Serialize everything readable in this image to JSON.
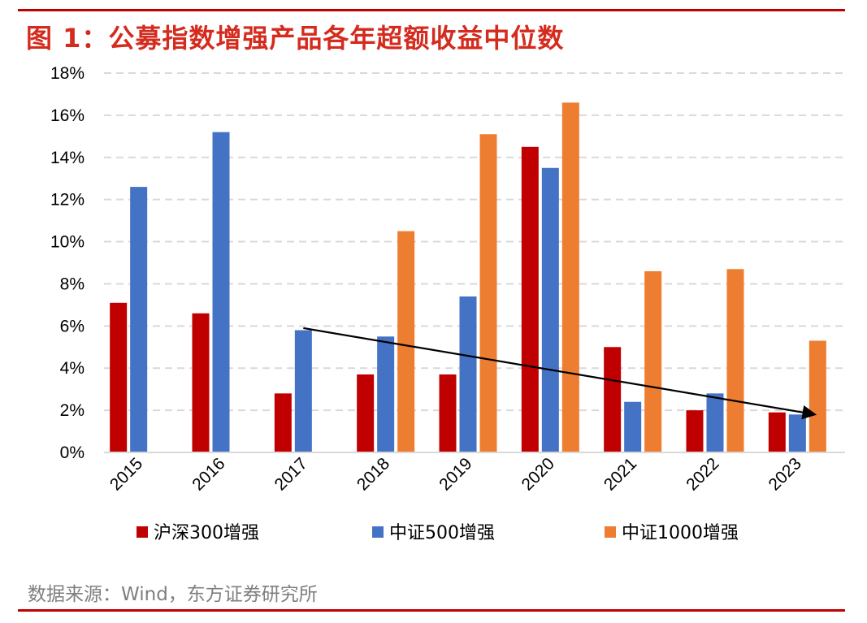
{
  "figure": {
    "title": "图 1：公募指数增强产品各年超额收益中位数",
    "source": "数据来源：Wind，东方证券研究所"
  },
  "colors": {
    "accent": "#c00000",
    "title": "#d42b1e",
    "series": [
      "#c00000",
      "#4472c4",
      "#ed7d31"
    ],
    "grid": "#d9d9d9",
    "source": "#7f7f7f"
  },
  "chart_data": {
    "type": "bar",
    "title": "公募指数增强产品各年超额收益中位数",
    "xlabel": "",
    "ylabel": "",
    "categories": [
      "2015",
      "2016",
      "2017",
      "2018",
      "2019",
      "2020",
      "2021",
      "2022",
      "2023"
    ],
    "series": [
      {
        "name": "沪深300增强",
        "values": [
          7.1,
          6.6,
          2.8,
          3.7,
          3.7,
          14.5,
          5.0,
          2.0,
          1.9
        ]
      },
      {
        "name": "中证500增强",
        "values": [
          12.6,
          15.2,
          5.8,
          5.5,
          7.4,
          13.5,
          2.4,
          2.8,
          1.8
        ]
      },
      {
        "name": "中证1000增强",
        "values": [
          null,
          null,
          null,
          10.5,
          15.1,
          16.6,
          8.6,
          8.7,
          5.3
        ]
      }
    ],
    "ylim": [
      0,
      18
    ],
    "yticks": [
      0,
      2,
      4,
      6,
      8,
      10,
      12,
      14,
      16,
      18
    ],
    "ytick_labels": [
      "0%",
      "2%",
      "4%",
      "6%",
      "8%",
      "10%",
      "12%",
      "14%",
      "16%",
      "18%"
    ],
    "grid": true,
    "legend_position": "bottom",
    "annotations": [
      {
        "type": "arrow",
        "from": {
          "category": "2017",
          "value": 5.9
        },
        "to": {
          "category": "2023",
          "value": 1.8
        }
      }
    ]
  }
}
